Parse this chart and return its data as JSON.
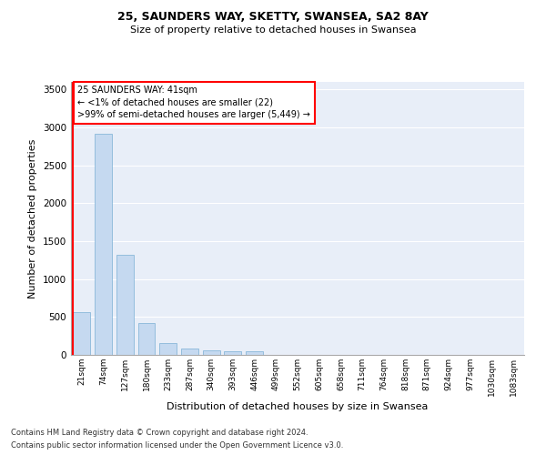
{
  "title1": "25, SAUNDERS WAY, SKETTY, SWANSEA, SA2 8AY",
  "title2": "Size of property relative to detached houses in Swansea",
  "xlabel": "Distribution of detached houses by size in Swansea",
  "ylabel": "Number of detached properties",
  "bar_color": "#c5d9f0",
  "bar_edge_color": "#7aafd4",
  "categories": [
    "21sqm",
    "74sqm",
    "127sqm",
    "180sqm",
    "233sqm",
    "287sqm",
    "340sqm",
    "393sqm",
    "446sqm",
    "499sqm",
    "552sqm",
    "605sqm",
    "658sqm",
    "711sqm",
    "764sqm",
    "818sqm",
    "871sqm",
    "924sqm",
    "977sqm",
    "1030sqm",
    "1083sqm"
  ],
  "values": [
    570,
    2920,
    1320,
    415,
    155,
    80,
    60,
    50,
    45,
    0,
    0,
    0,
    0,
    0,
    0,
    0,
    0,
    0,
    0,
    0,
    0
  ],
  "ylim": [
    0,
    3600
  ],
  "yticks": [
    0,
    500,
    1000,
    1500,
    2000,
    2500,
    3000,
    3500
  ],
  "annotation_box_text": "25 SAUNDERS WAY: 41sqm\n← <1% of detached houses are smaller (22)\n>99% of semi-detached houses are larger (5,449) →",
  "box_color": "red",
  "background_color": "#e8eef8",
  "grid_color": "#ffffff",
  "footer1": "Contains HM Land Registry data © Crown copyright and database right 2024.",
  "footer2": "Contains public sector information licensed under the Open Government Licence v3.0."
}
